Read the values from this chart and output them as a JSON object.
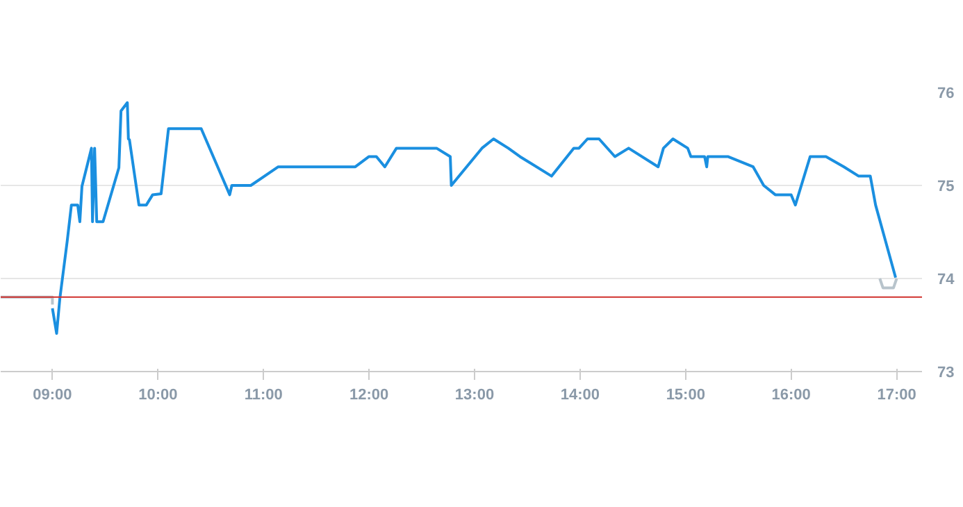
{
  "chart_data": {
    "type": "line",
    "xlim": [
      8.51,
      17.24
    ],
    "ylim": [
      73,
      76
    ],
    "xticks": [
      {
        "value": 9,
        "label": "09:00"
      },
      {
        "value": 10,
        "label": "10:00"
      },
      {
        "value": 11,
        "label": "11:00"
      },
      {
        "value": 12,
        "label": "12:00"
      },
      {
        "value": 13,
        "label": "13:00"
      },
      {
        "value": 14,
        "label": "14:00"
      },
      {
        "value": 15,
        "label": "15:00"
      },
      {
        "value": 16,
        "label": "16:00"
      },
      {
        "value": 17,
        "label": "17:00"
      }
    ],
    "yticks": [
      73,
      74,
      75,
      76
    ],
    "grid": "y",
    "marker": "none",
    "line_style": "solid",
    "ref_lines": [
      {
        "axis": "y",
        "value": 73.8,
        "color": "#d0312d"
      }
    ],
    "series": [
      {
        "color": "#b8c4cc",
        "x": [
          8.51,
          9.0,
          9.0
        ],
        "values": [
          73.8,
          73.8,
          73.72
        ]
      },
      {
        "color": "#b8c4cc",
        "x": [
          16.84,
          16.87,
          16.97,
          17.0
        ],
        "values": [
          74.0,
          73.9,
          73.9,
          74.0
        ]
      },
      {
        "color": "#1a8fe0",
        "x": [
          9.0,
          9.04,
          9.07,
          9.14,
          9.18,
          9.24,
          9.26,
          9.28,
          9.37,
          9.38,
          9.4,
          9.42,
          9.48,
          9.63,
          9.65,
          9.71,
          9.72,
          9.73,
          9.82,
          9.89,
          9.95,
          10.03,
          10.1,
          10.41,
          10.68,
          10.7,
          10.88,
          11.14,
          11.87,
          12.0,
          12.07,
          12.15,
          12.26,
          12.64,
          12.77,
          12.78,
          13.07,
          13.18,
          13.32,
          13.43,
          13.73,
          13.94,
          13.99,
          14.07,
          14.18,
          14.33,
          14.46,
          14.74,
          14.79,
          14.88,
          15.02,
          15.05,
          15.18,
          15.2,
          15.21,
          15.4,
          15.64,
          15.74,
          15.85,
          16.0,
          16.04,
          16.18,
          16.33,
          16.5,
          16.64,
          16.75,
          16.8,
          16.99
        ],
        "values": [
          73.68,
          73.41,
          73.78,
          74.4,
          74.79,
          74.79,
          74.61,
          74.99,
          75.4,
          74.61,
          75.4,
          74.61,
          74.61,
          75.19,
          75.8,
          75.89,
          75.5,
          75.49,
          74.79,
          74.79,
          74.9,
          74.91,
          75.61,
          75.61,
          74.9,
          75.0,
          75.0,
          75.2,
          75.2,
          75.31,
          75.31,
          75.2,
          75.4,
          75.4,
          75.31,
          75.0,
          75.4,
          75.5,
          75.4,
          75.31,
          75.1,
          75.4,
          75.4,
          75.5,
          75.5,
          75.31,
          75.4,
          75.2,
          75.4,
          75.5,
          75.4,
          75.31,
          75.31,
          75.2,
          75.31,
          75.31,
          75.2,
          75.0,
          74.9,
          74.9,
          74.79,
          75.31,
          75.31,
          75.2,
          75.1,
          75.1,
          74.79,
          74.01
        ]
      }
    ]
  }
}
